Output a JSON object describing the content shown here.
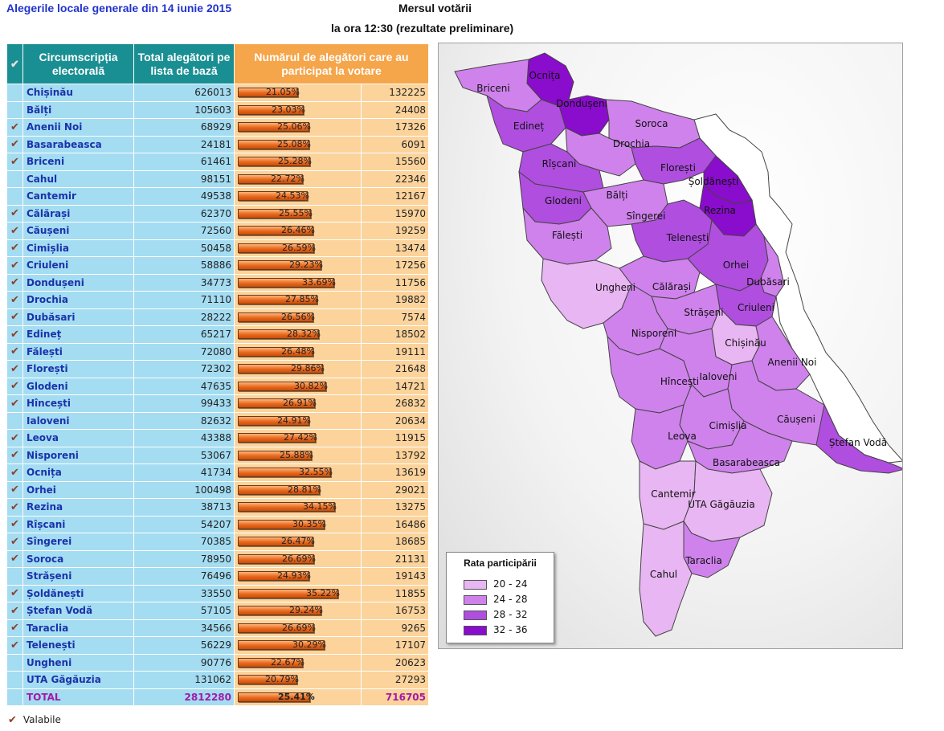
{
  "header": {
    "title": "Alegerile locale generale din 14 iunie 2015",
    "subtitle": "Mersul votării",
    "time": "la ora 12:30 (rezultate preliminare)"
  },
  "table": {
    "headers": {
      "district": "Circumscripția electorală",
      "total": "Total alegători pe lista de bază",
      "voted": "Numărul de alegători care au participat la votare"
    },
    "rows": [
      {
        "name": "Chișinău",
        "total": "626013",
        "pct": "21.05%",
        "value": 21.05,
        "voted": "132225",
        "valid": false
      },
      {
        "name": "Bălți",
        "total": "105603",
        "pct": "23.03%",
        "value": 23.03,
        "voted": "24408",
        "valid": false
      },
      {
        "name": "Anenii Noi",
        "total": "68929",
        "pct": "25.06%",
        "value": 25.06,
        "voted": "17326",
        "valid": true
      },
      {
        "name": "Basarabeasca",
        "total": "24181",
        "pct": "25.08%",
        "value": 25.08,
        "voted": "6091",
        "valid": true
      },
      {
        "name": "Briceni",
        "total": "61461",
        "pct": "25.28%",
        "value": 25.28,
        "voted": "15560",
        "valid": true
      },
      {
        "name": "Cahul",
        "total": "98151",
        "pct": "22.72%",
        "value": 22.72,
        "voted": "22346",
        "valid": false
      },
      {
        "name": "Cantemir",
        "total": "49538",
        "pct": "24.53%",
        "value": 24.53,
        "voted": "12167",
        "valid": false
      },
      {
        "name": "Călărași",
        "total": "62370",
        "pct": "25.55%",
        "value": 25.55,
        "voted": "15970",
        "valid": true
      },
      {
        "name": "Căușeni",
        "total": "72560",
        "pct": "26.46%",
        "value": 26.46,
        "voted": "19259",
        "valid": true
      },
      {
        "name": "Cimișlia",
        "total": "50458",
        "pct": "26.59%",
        "value": 26.59,
        "voted": "13474",
        "valid": true
      },
      {
        "name": "Criuleni",
        "total": "58886",
        "pct": "29.23%",
        "value": 29.23,
        "voted": "17256",
        "valid": true
      },
      {
        "name": "Dondușeni",
        "total": "34773",
        "pct": "33.69%",
        "value": 33.69,
        "voted": "11756",
        "valid": true
      },
      {
        "name": "Drochia",
        "total": "71110",
        "pct": "27.85%",
        "value": 27.85,
        "voted": "19882",
        "valid": true
      },
      {
        "name": "Dubăsari",
        "total": "28222",
        "pct": "26.56%",
        "value": 26.56,
        "voted": "7574",
        "valid": true
      },
      {
        "name": "Edineț",
        "total": "65217",
        "pct": "28.32%",
        "value": 28.32,
        "voted": "18502",
        "valid": true
      },
      {
        "name": "Fălești",
        "total": "72080",
        "pct": "26.48%",
        "value": 26.48,
        "voted": "19111",
        "valid": true
      },
      {
        "name": "Florești",
        "total": "72302",
        "pct": "29.86%",
        "value": 29.86,
        "voted": "21648",
        "valid": true
      },
      {
        "name": "Glodeni",
        "total": "47635",
        "pct": "30.82%",
        "value": 30.82,
        "voted": "14721",
        "valid": true
      },
      {
        "name": "Hîncești",
        "total": "99433",
        "pct": "26.91%",
        "value": 26.91,
        "voted": "26832",
        "valid": true
      },
      {
        "name": "Ialoveni",
        "total": "82632",
        "pct": "24.91%",
        "value": 24.91,
        "voted": "20634",
        "valid": false
      },
      {
        "name": "Leova",
        "total": "43388",
        "pct": "27.42%",
        "value": 27.42,
        "voted": "11915",
        "valid": true
      },
      {
        "name": "Nisporeni",
        "total": "53067",
        "pct": "25.88%",
        "value": 25.88,
        "voted": "13792",
        "valid": true
      },
      {
        "name": "Ocnița",
        "total": "41734",
        "pct": "32.55%",
        "value": 32.55,
        "voted": "13619",
        "valid": true
      },
      {
        "name": "Orhei",
        "total": "100498",
        "pct": "28.81%",
        "value": 28.81,
        "voted": "29021",
        "valid": true
      },
      {
        "name": "Rezina",
        "total": "38713",
        "pct": "34.15%",
        "value": 34.15,
        "voted": "13275",
        "valid": true
      },
      {
        "name": "Rîșcani",
        "total": "54207",
        "pct": "30.35%",
        "value": 30.35,
        "voted": "16486",
        "valid": true
      },
      {
        "name": "Sîngerei",
        "total": "70385",
        "pct": "26.47%",
        "value": 26.47,
        "voted": "18685",
        "valid": true
      },
      {
        "name": "Soroca",
        "total": "78950",
        "pct": "26.69%",
        "value": 26.69,
        "voted": "21131",
        "valid": true
      },
      {
        "name": "Strășeni",
        "total": "76496",
        "pct": "24.93%",
        "value": 24.93,
        "voted": "19143",
        "valid": false
      },
      {
        "name": "Șoldănești",
        "total": "33550",
        "pct": "35.22%",
        "value": 35.22,
        "voted": "11855",
        "valid": true
      },
      {
        "name": "Ștefan Vodă",
        "total": "57105",
        "pct": "29.24%",
        "value": 29.24,
        "voted": "16753",
        "valid": true
      },
      {
        "name": "Taraclia",
        "total": "34566",
        "pct": "26.69%",
        "value": 26.69,
        "voted": "9265",
        "valid": true
      },
      {
        "name": "Telenești",
        "total": "56229",
        "pct": "30.29%",
        "value": 30.29,
        "voted": "17107",
        "valid": true
      },
      {
        "name": "Ungheni",
        "total": "90776",
        "pct": "22.67%",
        "value": 22.67,
        "voted": "20623",
        "valid": false
      },
      {
        "name": "UTA Găgăuzia",
        "total": "131062",
        "pct": "20.79%",
        "value": 20.79,
        "voted": "27293",
        "valid": false
      }
    ],
    "total": {
      "name": "TOTAL",
      "total": "2812280",
      "pct": "25.41%",
      "value": 25.41,
      "voted": "716705"
    }
  },
  "legend_valid": {
    "label": "Valabile",
    "icon": "checkmark-icon"
  },
  "map": {
    "legend_title": "Rata participării",
    "legend": [
      {
        "label": "20 - 24",
        "color": "#e8b6f2"
      },
      {
        "label": "24 - 28",
        "color": "#cf82ec"
      },
      {
        "label": "28 - 32",
        "color": "#b04ee0"
      },
      {
        "label": "32 - 36",
        "color": "#8a0ccc"
      }
    ],
    "labels": [
      "Ocnița",
      "Briceni",
      "Dondușeni",
      "Edineț",
      "Soroca",
      "Drochia",
      "Rîșcani",
      "Florești",
      "Șoldănești",
      "Glodeni",
      "Bălți",
      "Sîngerei",
      "Rezina",
      "Fălești",
      "Telenești",
      "Orhei",
      "Dubăsari",
      "Ungheni",
      "Călărași",
      "Strășeni",
      "Criuleni",
      "Nisporeni",
      "Chișinău",
      "Anenii Noi",
      "Hîncești",
      "Ialoveni",
      "Căușeni",
      "Cimișlia",
      "Leova",
      "Ștefan Vodă",
      "Basarabeasca",
      "Cantemir",
      "UTA Găgăuzia",
      "Taraclia",
      "Cahul"
    ]
  },
  "colors": {
    "blue_cell": "#a4dcf2",
    "orange_cell": "#fbd39b",
    "header_blue": "#1a8f93",
    "header_orange": "#f5a54a"
  }
}
